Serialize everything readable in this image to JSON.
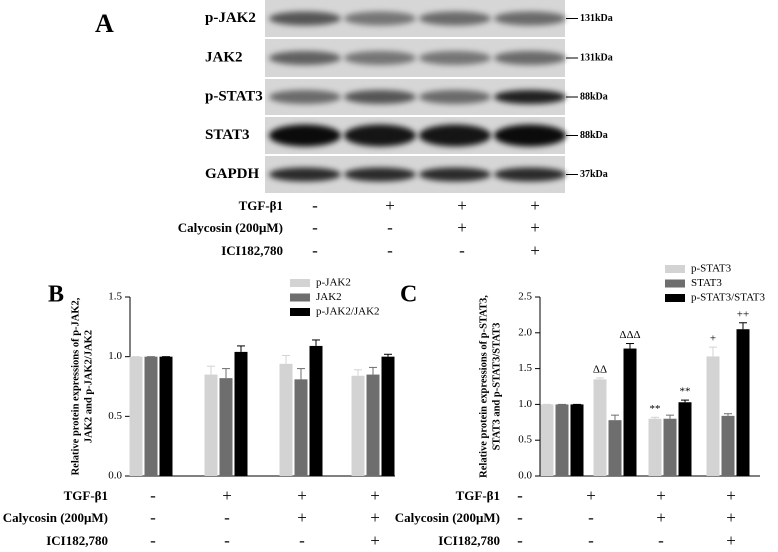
{
  "panel_a": {
    "label": "A",
    "bands": [
      {
        "name": "p-JAK2",
        "size": "131kDa"
      },
      {
        "name": "JAK2",
        "size": "131kDa"
      },
      {
        "name": "p-STAT3",
        "size": "88kDa"
      },
      {
        "name": "STAT3",
        "size": "88kDa"
      },
      {
        "name": "GAPDH",
        "size": "37kDa"
      }
    ]
  },
  "treatments": {
    "names": [
      "TGF-β1",
      "Calycosin (200μM)",
      "ICI182,780"
    ],
    "signs": [
      [
        "-",
        "+",
        "+",
        "+"
      ],
      [
        "-",
        "-",
        "+",
        "+"
      ],
      [
        "-",
        "-",
        "-",
        "+"
      ]
    ]
  },
  "chart_data": [
    {
      "type": "bar",
      "panel": "B",
      "ylabel": [
        "Relative protein expressions of p-JAK2,",
        "JAK2 and p-JAK2/JAK2"
      ],
      "ylim": [
        0,
        1.5
      ],
      "yticks": [
        {
          "value": 0,
          "label": "0.0"
        },
        0.5,
        {
          "value": 1,
          "label": "1.0"
        },
        1.5
      ],
      "series": [
        {
          "name": "p-JAK2",
          "color": "#d3d3d3",
          "values": [
            1.0,
            0.85,
            0.94,
            0.84
          ],
          "errors": [
            0,
            0.07,
            0.07,
            0.05
          ]
        },
        {
          "name": "JAK2",
          "color": "#6e6e6e",
          "values": [
            1.0,
            0.82,
            0.81,
            0.85
          ],
          "errors": [
            0,
            0.08,
            0.09,
            0.06
          ]
        },
        {
          "name": "p-JAK2/JAK2",
          "color": "#000000",
          "values": [
            1.0,
            1.04,
            1.09,
            1.0
          ],
          "errors": [
            0,
            0.05,
            0.05,
            0.02
          ]
        }
      ]
    },
    {
      "type": "bar",
      "panel": "C",
      "ylabel": [
        "Relative protein expressions of p-STAT3,",
        "STAT3 and p-STAT3/STAT3"
      ],
      "ylim": [
        0,
        2.5
      ],
      "yticks": [
        {
          "value": 0,
          "label": "0.0"
        },
        0.5,
        {
          "value": 1,
          "label": "1.0"
        },
        1.5,
        {
          "value": 2,
          "label": "2.0"
        },
        2.5
      ],
      "series": [
        {
          "name": "p-STAT3",
          "color": "#d3d3d3",
          "values": [
            1.0,
            1.35,
            0.8,
            1.67
          ],
          "errors": [
            0,
            0.02,
            0.02,
            0.13
          ],
          "markers": [
            null,
            "ΔΔ",
            "**",
            "+"
          ]
        },
        {
          "name": "STAT3",
          "color": "#6e6e6e",
          "values": [
            1.0,
            0.78,
            0.8,
            0.84
          ],
          "errors": [
            0,
            0.07,
            0.05,
            0.03
          ]
        },
        {
          "name": "p-STAT3/STAT3",
          "color": "#000000",
          "values": [
            1.0,
            1.78,
            1.03,
            2.05
          ],
          "errors": [
            0,
            0.07,
            0.03,
            0.09
          ],
          "markers": [
            null,
            "ΔΔΔ",
            "**",
            "++"
          ]
        }
      ]
    }
  ]
}
